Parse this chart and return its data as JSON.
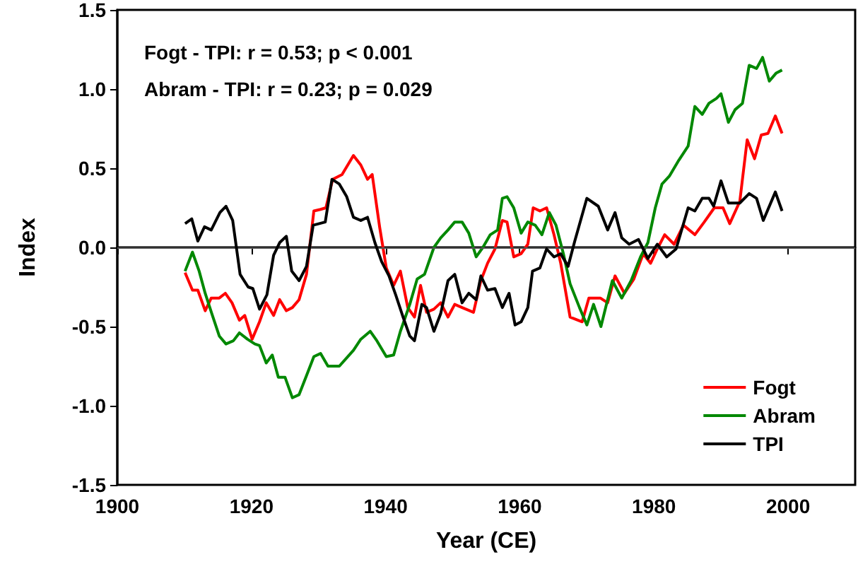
{
  "chart_data": {
    "type": "line",
    "xlabel": "Year (CE)",
    "ylabel": "Index",
    "annotations": [
      "Fogt - TPI: r = 0.53; p < 0.001",
      "Abram - TPI: r = 0.23; p = 0.029"
    ],
    "xlim": [
      1900,
      2010
    ],
    "xticks": [
      1900,
      1920,
      1940,
      1960,
      1980,
      2000
    ],
    "ylim": [
      -1.5,
      1.5
    ],
    "yticks": [
      {
        "value": -1.5,
        "label": "-1.5"
      },
      {
        "value": -1,
        "label": "-1.0"
      },
      {
        "value": -0.5,
        "label": "-0.5"
      },
      {
        "value": 0,
        "label": "0.0"
      },
      {
        "value": 0.5,
        "label": "0.5"
      },
      {
        "value": 1,
        "label": "1.0"
      },
      {
        "value": 1.5,
        "label": "1.5"
      }
    ],
    "grid": false,
    "legend": "bottom right",
    "marker": "none",
    "line_style": "solid",
    "ref_lines": [
      {
        "axis": "y",
        "value": 0,
        "color": "#555555"
      }
    ],
    "series": [
      {
        "name": "Fogt",
        "color": "#ff0000",
        "x": [
          1910.1,
          1911.2,
          1912,
          1913.1,
          1914,
          1915.2,
          1916.1,
          1917.1,
          1918.2,
          1919,
          1920.1,
          1921.2,
          1922.2,
          1923.3,
          1924.2,
          1925.2,
          1926.1,
          1927.1,
          1928.2,
          1929.3,
          1930.3,
          1931.1,
          1932.1,
          1933.5,
          1935.2,
          1936.3,
          1937.3,
          1938,
          1939.1,
          1940.1,
          1941.2,
          1942.2,
          1943.3,
          1944.3,
          1945.2,
          1946.1,
          1947.2,
          1948.2,
          1949.3,
          1950.3,
          1951.4,
          1953.1,
          1954.2,
          1955.2,
          1956.3,
          1957.4,
          1958.1,
          1959.1,
          1960.2,
          1961.2,
          1962,
          1963,
          1964,
          1965.1,
          1966.1,
          1967.5,
          1969.3,
          1970.3,
          1972,
          1973.1,
          1974.2,
          1975.6,
          1977,
          1978.4,
          1979.5,
          1980.5,
          1981.6,
          1983,
          1984.4,
          1986.1,
          1987.5,
          1989,
          1990.3,
          1991.3,
          1992.8,
          1993.9,
          1995,
          1996,
          1997,
          1998.1,
          1999.1
        ],
        "values": [
          -0.16,
          -0.27,
          -0.27,
          -0.4,
          -0.32,
          -0.32,
          -0.29,
          -0.35,
          -0.46,
          -0.43,
          -0.58,
          -0.47,
          -0.35,
          -0.43,
          -0.33,
          -0.4,
          -0.38,
          -0.33,
          -0.17,
          0.23,
          0.24,
          0.25,
          0.43,
          0.46,
          0.58,
          0.52,
          0.43,
          0.46,
          0.13,
          -0.13,
          -0.24,
          -0.15,
          -0.38,
          -0.44,
          -0.24,
          -0.41,
          -0.39,
          -0.35,
          -0.44,
          -0.36,
          -0.38,
          -0.41,
          -0.21,
          -0.1,
          -0.01,
          0.17,
          0.16,
          -0.06,
          -0.04,
          0.02,
          0.25,
          0.23,
          0.25,
          0.08,
          -0.1,
          -0.44,
          -0.47,
          -0.32,
          -0.32,
          -0.35,
          -0.18,
          -0.29,
          -0.2,
          -0.04,
          -0.1,
          -0.01,
          0.08,
          0.02,
          0.14,
          0.08,
          0.16,
          0.25,
          0.25,
          0.15,
          0.29,
          0.68,
          0.56,
          0.71,
          0.72,
          0.83,
          0.72
        ]
      },
      {
        "name": "Abram",
        "color": "#008800",
        "x": [
          1910.1,
          1911.2,
          1912.2,
          1913.1,
          1914.1,
          1915.2,
          1916.2,
          1917.3,
          1918.2,
          1919.4,
          1920.5,
          1921.2,
          1922.2,
          1923.1,
          1924,
          1925,
          1926.1,
          1927.1,
          1928.2,
          1929.3,
          1930.3,
          1931.4,
          1933.1,
          1935.2,
          1936.3,
          1937.7,
          1938.7,
          1940.1,
          1941.2,
          1942.2,
          1943.6,
          1944.7,
          1945.8,
          1947.2,
          1948.2,
          1949.3,
          1950.3,
          1951.4,
          1952.4,
          1953.5,
          1954.5,
          1955.6,
          1956.7,
          1957.4,
          1958.1,
          1959.1,
          1960.2,
          1961.2,
          1962.3,
          1963.3,
          1964.4,
          1965.4,
          1966.5,
          1967.5,
          1968.9,
          1970,
          1971,
          1972.1,
          1973.8,
          1975.2,
          1976.6,
          1978,
          1979.1,
          1980.2,
          1981.2,
          1982.3,
          1983.7,
          1985.1,
          1986.1,
          1987.2,
          1988.2,
          1989.3,
          1990,
          1991.1,
          1992.1,
          1993.2,
          1994.2,
          1995.3,
          1996.2,
          1997.2,
          1998.2,
          1999.1
        ],
        "values": [
          -0.15,
          -0.03,
          -0.15,
          -0.29,
          -0.42,
          -0.56,
          -0.61,
          -0.59,
          -0.54,
          -0.58,
          -0.61,
          -0.62,
          -0.73,
          -0.68,
          -0.82,
          -0.82,
          -0.95,
          -0.93,
          -0.81,
          -0.69,
          -0.67,
          -0.75,
          -0.75,
          -0.65,
          -0.58,
          -0.53,
          -0.59,
          -0.69,
          -0.68,
          -0.53,
          -0.36,
          -0.2,
          -0.17,
          0,
          0.06,
          0.11,
          0.16,
          0.16,
          0.09,
          -0.06,
          0,
          0.08,
          0.11,
          0.31,
          0.32,
          0.25,
          0.09,
          0.16,
          0.14,
          0.08,
          0.22,
          0.14,
          -0.04,
          -0.23,
          -0.38,
          -0.49,
          -0.36,
          -0.5,
          -0.21,
          -0.32,
          -0.21,
          -0.06,
          0.03,
          0.25,
          0.4,
          0.45,
          0.55,
          0.64,
          0.89,
          0.84,
          0.91,
          0.94,
          0.97,
          0.79,
          0.87,
          0.91,
          1.15,
          1.13,
          1.2,
          1.05,
          1.1,
          1.12
        ]
      },
      {
        "name": "TPI",
        "color": "#000000",
        "x": [
          1910.1,
          1911.1,
          1912,
          1913,
          1914,
          1915.3,
          1916.2,
          1917.2,
          1918.3,
          1919.5,
          1920.2,
          1921.2,
          1922.3,
          1923.3,
          1924.2,
          1925.2,
          1926,
          1927.1,
          1928.2,
          1929.2,
          1931,
          1932,
          1933.1,
          1934.2,
          1935.2,
          1936.3,
          1937.3,
          1938.4,
          1939.4,
          1940.5,
          1941.5,
          1942.6,
          1943.6,
          1944.3,
          1945.4,
          1946.1,
          1947.2,
          1948.2,
          1949.3,
          1950.3,
          1951.4,
          1952.4,
          1953.5,
          1954.2,
          1955.2,
          1956.3,
          1957.4,
          1958.4,
          1959.3,
          1960.2,
          1961.2,
          1961.9,
          1963,
          1964,
          1965.1,
          1966.1,
          1967.2,
          1968.2,
          1970,
          1971.7,
          1973.1,
          1974.2,
          1975.2,
          1976.3,
          1977.7,
          1979.1,
          1980.5,
          1981.9,
          1983.3,
          1985.1,
          1986.1,
          1987.2,
          1988.2,
          1988.9,
          1990,
          1991.1,
          1992.8,
          1994.2,
          1995.3,
          1996.3,
          1998.1,
          1999.1
        ],
        "values": [
          0.15,
          0.18,
          0.04,
          0.13,
          0.11,
          0.22,
          0.26,
          0.17,
          -0.17,
          -0.25,
          -0.26,
          -0.39,
          -0.3,
          -0.05,
          0.03,
          0.07,
          -0.15,
          -0.21,
          -0.12,
          0.14,
          0.16,
          0.43,
          0.4,
          0.32,
          0.19,
          0.17,
          0.19,
          0.03,
          -0.09,
          -0.18,
          -0.3,
          -0.44,
          -0.56,
          -0.59,
          -0.36,
          -0.38,
          -0.53,
          -0.42,
          -0.21,
          -0.17,
          -0.35,
          -0.29,
          -0.33,
          -0.18,
          -0.27,
          -0.26,
          -0.38,
          -0.29,
          -0.49,
          -0.47,
          -0.38,
          -0.15,
          -0.13,
          -0.01,
          -0.06,
          -0.04,
          -0.12,
          0.04,
          0.31,
          0.26,
          0.11,
          0.22,
          0.06,
          0.02,
          0.05,
          -0.07,
          0.02,
          -0.06,
          -0.01,
          0.25,
          0.23,
          0.31,
          0.31,
          0.26,
          0.42,
          0.28,
          0.28,
          0.34,
          0.31,
          0.17,
          0.35,
          0.23
        ]
      }
    ]
  }
}
